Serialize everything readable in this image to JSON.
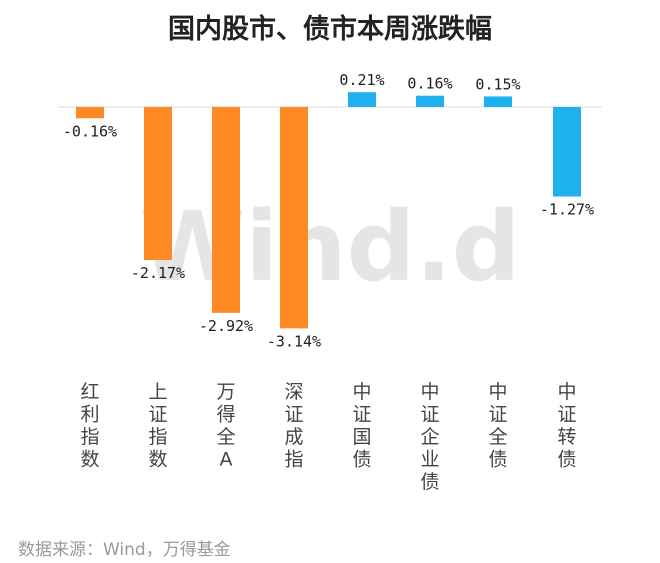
{
  "title": "国内股市、债市本周涨跌幅",
  "source": "数据来源：Wind，万得基金",
  "watermark": "Wind.d",
  "colors": {
    "negative_equity": "#ff8a24",
    "bond": "#1fb0f0",
    "axis": "#d8d8d8"
  },
  "chart_data": {
    "type": "bar",
    "title": "国内股市、债市本周涨跌幅",
    "categories": [
      "红利指数",
      "上证指数",
      "万得全A",
      "深证成指",
      "中证国债",
      "中证企业债",
      "中证全债",
      "中证转债"
    ],
    "values": [
      -0.16,
      -2.17,
      -2.92,
      -3.14,
      0.21,
      0.16,
      0.15,
      -1.27
    ],
    "value_labels": [
      "-0.16%",
      "-2.17%",
      "-2.92%",
      "-3.14%",
      "0.21%",
      "0.16%",
      "0.15%",
      "-1.27%"
    ],
    "bar_colors": [
      "#ff8a24",
      "#ff8a24",
      "#ff8a24",
      "#ff8a24",
      "#1fb0f0",
      "#1fb0f0",
      "#1fb0f0",
      "#1fb0f0"
    ],
    "unit": "%",
    "ylim": [
      -3.3,
      0.25
    ],
    "grid": false,
    "legend": "none"
  }
}
